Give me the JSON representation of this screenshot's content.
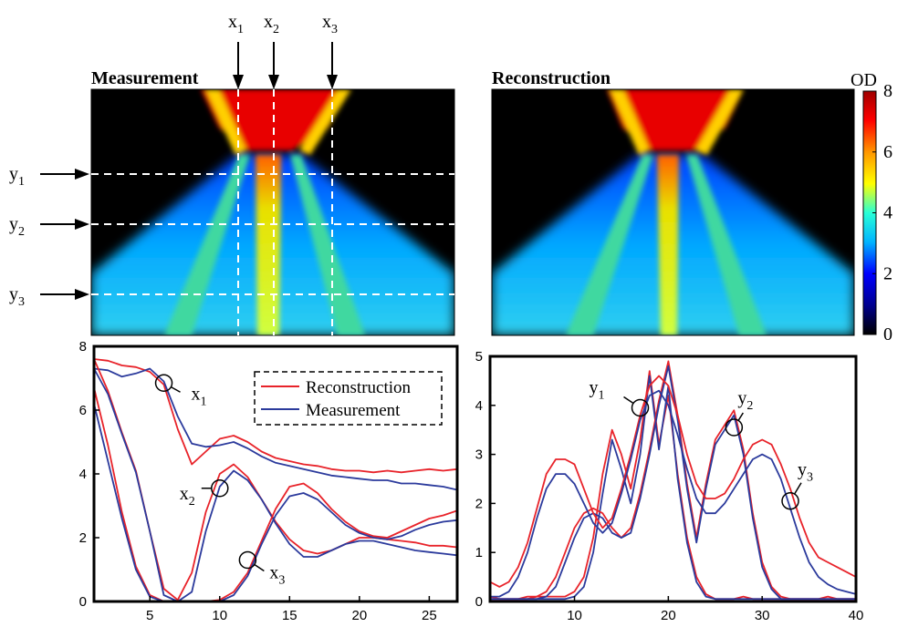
{
  "images": {
    "measurement_title": "Measurement",
    "reconstruction_title": "Reconstruction",
    "x_markers": [
      {
        "letter": "x",
        "sub": "1"
      },
      {
        "letter": "x",
        "sub": "2"
      },
      {
        "letter": "x",
        "sub": "3"
      }
    ],
    "y_markers": [
      {
        "letter": "y",
        "sub": "1"
      },
      {
        "letter": "y",
        "sub": "2"
      },
      {
        "letter": "y",
        "sub": "3"
      }
    ],
    "colorbar": {
      "label": "OD",
      "ticks": [
        "0",
        "2",
        "4",
        "6",
        "8"
      ],
      "range": [
        0,
        8
      ],
      "colormap": [
        "#000000",
        "#00008f",
        "#0000ff",
        "#00b4ff",
        "#28ffd6",
        "#ffff00",
        "#ff9600",
        "#ff0000",
        "#a00000"
      ]
    }
  },
  "colors": {
    "reconstruction": "#e8232a",
    "measurement": "#2b3a9c"
  },
  "chart_data": [
    {
      "type": "line",
      "xlim": [
        1,
        27
      ],
      "ylim": [
        0,
        8
      ],
      "xticks": [
        5,
        10,
        15,
        20,
        25
      ],
      "yticks": [
        0,
        2,
        4,
        6,
        8
      ],
      "legend": {
        "placement": "top-right",
        "entries": [
          "Reconstruction",
          "Measurement"
        ]
      },
      "annotations": [
        {
          "letter": "x",
          "sub": "1",
          "x": 6,
          "y": 6.85
        },
        {
          "letter": "x",
          "sub": "2",
          "x": 10,
          "y": 3.55
        },
        {
          "letter": "x",
          "sub": "3",
          "x": 12,
          "y": 1.3
        }
      ],
      "x": [
        1,
        2,
        3,
        4,
        5,
        6,
        7,
        8,
        9,
        10,
        11,
        12,
        13,
        14,
        15,
        16,
        17,
        18,
        19,
        20,
        21,
        22,
        23,
        24,
        25,
        26,
        27
      ],
      "series": [
        {
          "name": "Reconstruction",
          "profile": "x1",
          "values": [
            7.6,
            7.55,
            7.4,
            7.35,
            7.2,
            6.8,
            5.4,
            4.3,
            4.7,
            5.1,
            5.2,
            5.0,
            4.7,
            4.5,
            4.4,
            4.3,
            4.25,
            4.15,
            4.1,
            4.1,
            4.05,
            4.1,
            4.05,
            4.1,
            4.15,
            4.1,
            4.15
          ]
        },
        {
          "name": "Measurement",
          "profile": "x1",
          "values": [
            7.3,
            7.25,
            7.05,
            7.15,
            7.3,
            6.9,
            5.8,
            4.95,
            4.85,
            4.9,
            5.0,
            4.8,
            4.55,
            4.35,
            4.25,
            4.15,
            4.05,
            3.95,
            3.9,
            3.85,
            3.8,
            3.8,
            3.7,
            3.7,
            3.65,
            3.6,
            3.5
          ]
        },
        {
          "name": "Reconstruction",
          "profile": "x2",
          "values": [
            7.6,
            6.6,
            5.3,
            4.1,
            2.2,
            0.4,
            0.05,
            0.9,
            2.8,
            4.0,
            4.3,
            3.9,
            3.2,
            2.5,
            1.95,
            1.6,
            1.5,
            1.6,
            1.8,
            2.0,
            2.0,
            1.95,
            1.9,
            1.85,
            1.75,
            1.75,
            1.7
          ]
        },
        {
          "name": "Measurement",
          "profile": "x2",
          "values": [
            7.3,
            6.5,
            5.25,
            4.05,
            2.2,
            0.2,
            0.0,
            0.3,
            2.2,
            3.6,
            4.1,
            3.8,
            3.2,
            2.45,
            1.8,
            1.4,
            1.4,
            1.6,
            1.8,
            1.9,
            1.9,
            1.8,
            1.7,
            1.6,
            1.55,
            1.5,
            1.45
          ]
        },
        {
          "name": "Reconstruction",
          "profile": "x3",
          "values": [
            6.7,
            4.9,
            2.8,
            1.1,
            0.2,
            0.0,
            0.0,
            0.0,
            0.0,
            0.05,
            0.3,
            0.9,
            1.9,
            2.9,
            3.6,
            3.7,
            3.4,
            2.9,
            2.5,
            2.2,
            2.05,
            2.0,
            2.2,
            2.4,
            2.6,
            2.7,
            2.85
          ]
        },
        {
          "name": "Measurement",
          "profile": "x3",
          "values": [
            6.2,
            4.4,
            2.6,
            1.0,
            0.15,
            0.0,
            0.0,
            0.0,
            0.0,
            0.0,
            0.2,
            0.8,
            1.8,
            2.7,
            3.3,
            3.4,
            3.2,
            2.8,
            2.4,
            2.15,
            2.0,
            1.95,
            2.05,
            2.25,
            2.4,
            2.5,
            2.55
          ]
        }
      ]
    },
    {
      "type": "line",
      "xlim": [
        1,
        40
      ],
      "ylim": [
        0,
        5
      ],
      "xticks": [
        10,
        20,
        30,
        40
      ],
      "yticks": [
        0,
        1,
        2,
        3,
        4,
        5
      ],
      "annotations": [
        {
          "letter": "y",
          "sub": "1",
          "x": 17,
          "y": 3.95
        },
        {
          "letter": "y",
          "sub": "2",
          "x": 27,
          "y": 3.55
        },
        {
          "letter": "y",
          "sub": "3",
          "x": 33,
          "y": 2.05
        }
      ],
      "x": [
        1,
        2,
        3,
        4,
        5,
        6,
        7,
        8,
        9,
        10,
        11,
        12,
        13,
        14,
        15,
        16,
        17,
        18,
        19,
        20,
        21,
        22,
        23,
        24,
        25,
        26,
        27,
        28,
        29,
        30,
        31,
        32,
        33,
        34,
        35,
        36,
        37,
        38,
        39,
        40
      ],
      "series": [
        {
          "name": "Reconstruction",
          "profile": "y1",
          "values": [
            0.1,
            0.05,
            0.05,
            0.05,
            0.1,
            0.1,
            0.1,
            0.1,
            0.1,
            0.2,
            0.5,
            1.3,
            2.6,
            3.5,
            3.0,
            2.3,
            3.3,
            4.7,
            3.2,
            4.2,
            2.6,
            1.3,
            0.5,
            0.15,
            0.05,
            0.05,
            0.05,
            0.1,
            0.05,
            0.05,
            0.05,
            0.05,
            0.05,
            0.05,
            0.05,
            0.05,
            0.1,
            0.05,
            0.05,
            0.05
          ]
        },
        {
          "name": "Measurement",
          "profile": "y1",
          "values": [
            0.05,
            0.05,
            0.05,
            0.05,
            0.05,
            0.05,
            0.05,
            0.05,
            0.05,
            0.1,
            0.3,
            1.0,
            2.2,
            3.3,
            2.7,
            2.0,
            3.0,
            4.6,
            3.1,
            4.4,
            2.5,
            1.2,
            0.4,
            0.1,
            0.05,
            0.05,
            0.05,
            0.05,
            0.05,
            0.05,
            0.05,
            0.05,
            0.05,
            0.05,
            0.05,
            0.05,
            0.05,
            0.05,
            0.05,
            0.05
          ]
        },
        {
          "name": "Reconstruction",
          "profile": "y2",
          "values": [
            0.05,
            0.05,
            0.05,
            0.05,
            0.05,
            0.1,
            0.2,
            0.5,
            1.0,
            1.5,
            1.8,
            1.9,
            1.8,
            1.5,
            1.3,
            1.5,
            2.2,
            3.1,
            4.1,
            4.9,
            3.8,
            2.4,
            1.3,
            2.4,
            3.3,
            3.6,
            3.9,
            3.1,
            1.8,
            0.8,
            0.3,
            0.1,
            0.05,
            0.05,
            0.05,
            0.05,
            0.05,
            0.05,
            0.05,
            0.05
          ]
        },
        {
          "name": "Measurement",
          "profile": "y2",
          "values": [
            0.05,
            0.05,
            0.05,
            0.05,
            0.05,
            0.05,
            0.1,
            0.3,
            0.8,
            1.3,
            1.7,
            1.8,
            1.7,
            1.4,
            1.3,
            1.4,
            2.1,
            3.0,
            4.0,
            4.8,
            3.7,
            2.3,
            1.2,
            2.3,
            3.2,
            3.5,
            3.8,
            3.0,
            1.7,
            0.7,
            0.25,
            0.05,
            0.05,
            0.05,
            0.05,
            0.05,
            0.05,
            0.05,
            0.05,
            0.05
          ]
        },
        {
          "name": "Reconstruction",
          "profile": "y3",
          "values": [
            0.4,
            0.3,
            0.4,
            0.7,
            1.2,
            1.9,
            2.6,
            2.9,
            2.9,
            2.8,
            2.3,
            1.8,
            1.5,
            1.7,
            2.3,
            3.0,
            3.8,
            4.4,
            4.6,
            4.4,
            3.8,
            3.0,
            2.4,
            2.1,
            2.1,
            2.2,
            2.5,
            2.9,
            3.2,
            3.3,
            3.2,
            2.8,
            2.3,
            1.7,
            1.2,
            0.9,
            0.8,
            0.7,
            0.6,
            0.5
          ]
        },
        {
          "name": "Measurement",
          "profile": "y3",
          "values": [
            0.1,
            0.1,
            0.2,
            0.5,
            1.0,
            1.7,
            2.3,
            2.6,
            2.6,
            2.4,
            2.0,
            1.6,
            1.4,
            1.6,
            2.2,
            2.9,
            3.7,
            4.2,
            4.3,
            4.0,
            3.4,
            2.7,
            2.1,
            1.8,
            1.8,
            2.0,
            2.3,
            2.6,
            2.9,
            3.0,
            2.9,
            2.5,
            1.9,
            1.3,
            0.8,
            0.5,
            0.35,
            0.25,
            0.2,
            0.15
          ]
        }
      ]
    }
  ]
}
